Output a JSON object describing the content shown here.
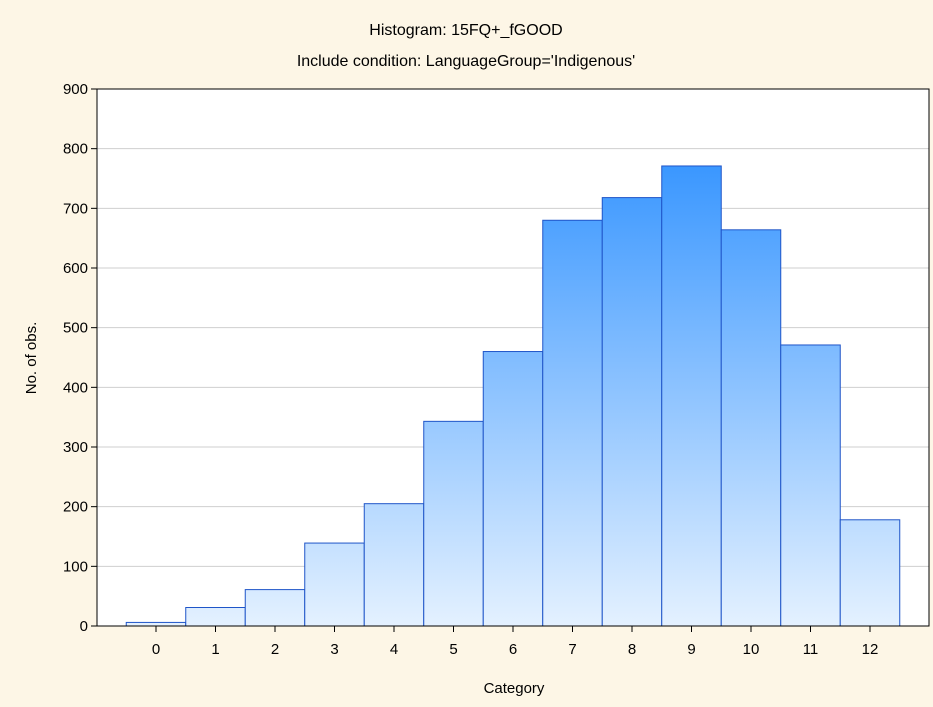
{
  "chart_data": {
    "type": "bar",
    "title": "Histogram: 15FQ+_fGOOD",
    "subtitle": "Include condition: LanguageGroup='Indigenous'",
    "xlabel": "Category",
    "ylabel": "No. of obs.",
    "categories": [
      "0",
      "1",
      "2",
      "3",
      "4",
      "5",
      "6",
      "7",
      "8",
      "9",
      "10",
      "11",
      "12"
    ],
    "values": [
      6,
      31,
      61,
      139,
      205,
      343,
      460,
      680,
      718,
      771,
      664,
      471,
      178
    ],
    "ylim": [
      0,
      900
    ],
    "yticks": [
      0,
      100,
      200,
      300,
      400,
      500,
      600,
      700,
      800,
      900
    ],
    "grid": true,
    "legend": "none",
    "colors": {
      "background": "#fdf6e6",
      "plot_background": "#ffffff",
      "bar_top": "#1e88ff",
      "bar_bottom": "#e4f1ff",
      "bar_edge": "#1f55c8",
      "grid": "#cfcfcf",
      "axis": "#000000"
    }
  }
}
